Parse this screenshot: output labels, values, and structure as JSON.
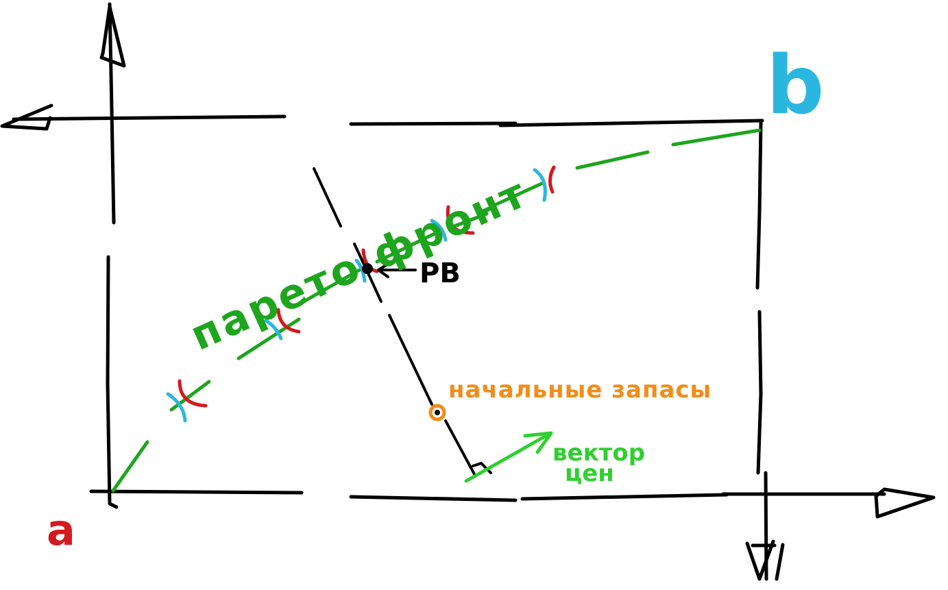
{
  "labels": {
    "corner_a": "a",
    "corner_b": "b",
    "pareto_front": "парето фронт",
    "equilibrium": "PB",
    "initial_endowment": "начальные запасы",
    "price_vector_line1": "вектор",
    "price_vector_line2": "цен"
  },
  "colors": {
    "axes_and_box": "#000000",
    "pareto_front": "#1ea51e",
    "agent_a": "#d41a1f",
    "agent_b": "#2bb6e0",
    "initial_endowment": "#f28c1a",
    "price_vector": "#2fcf2f"
  }
}
